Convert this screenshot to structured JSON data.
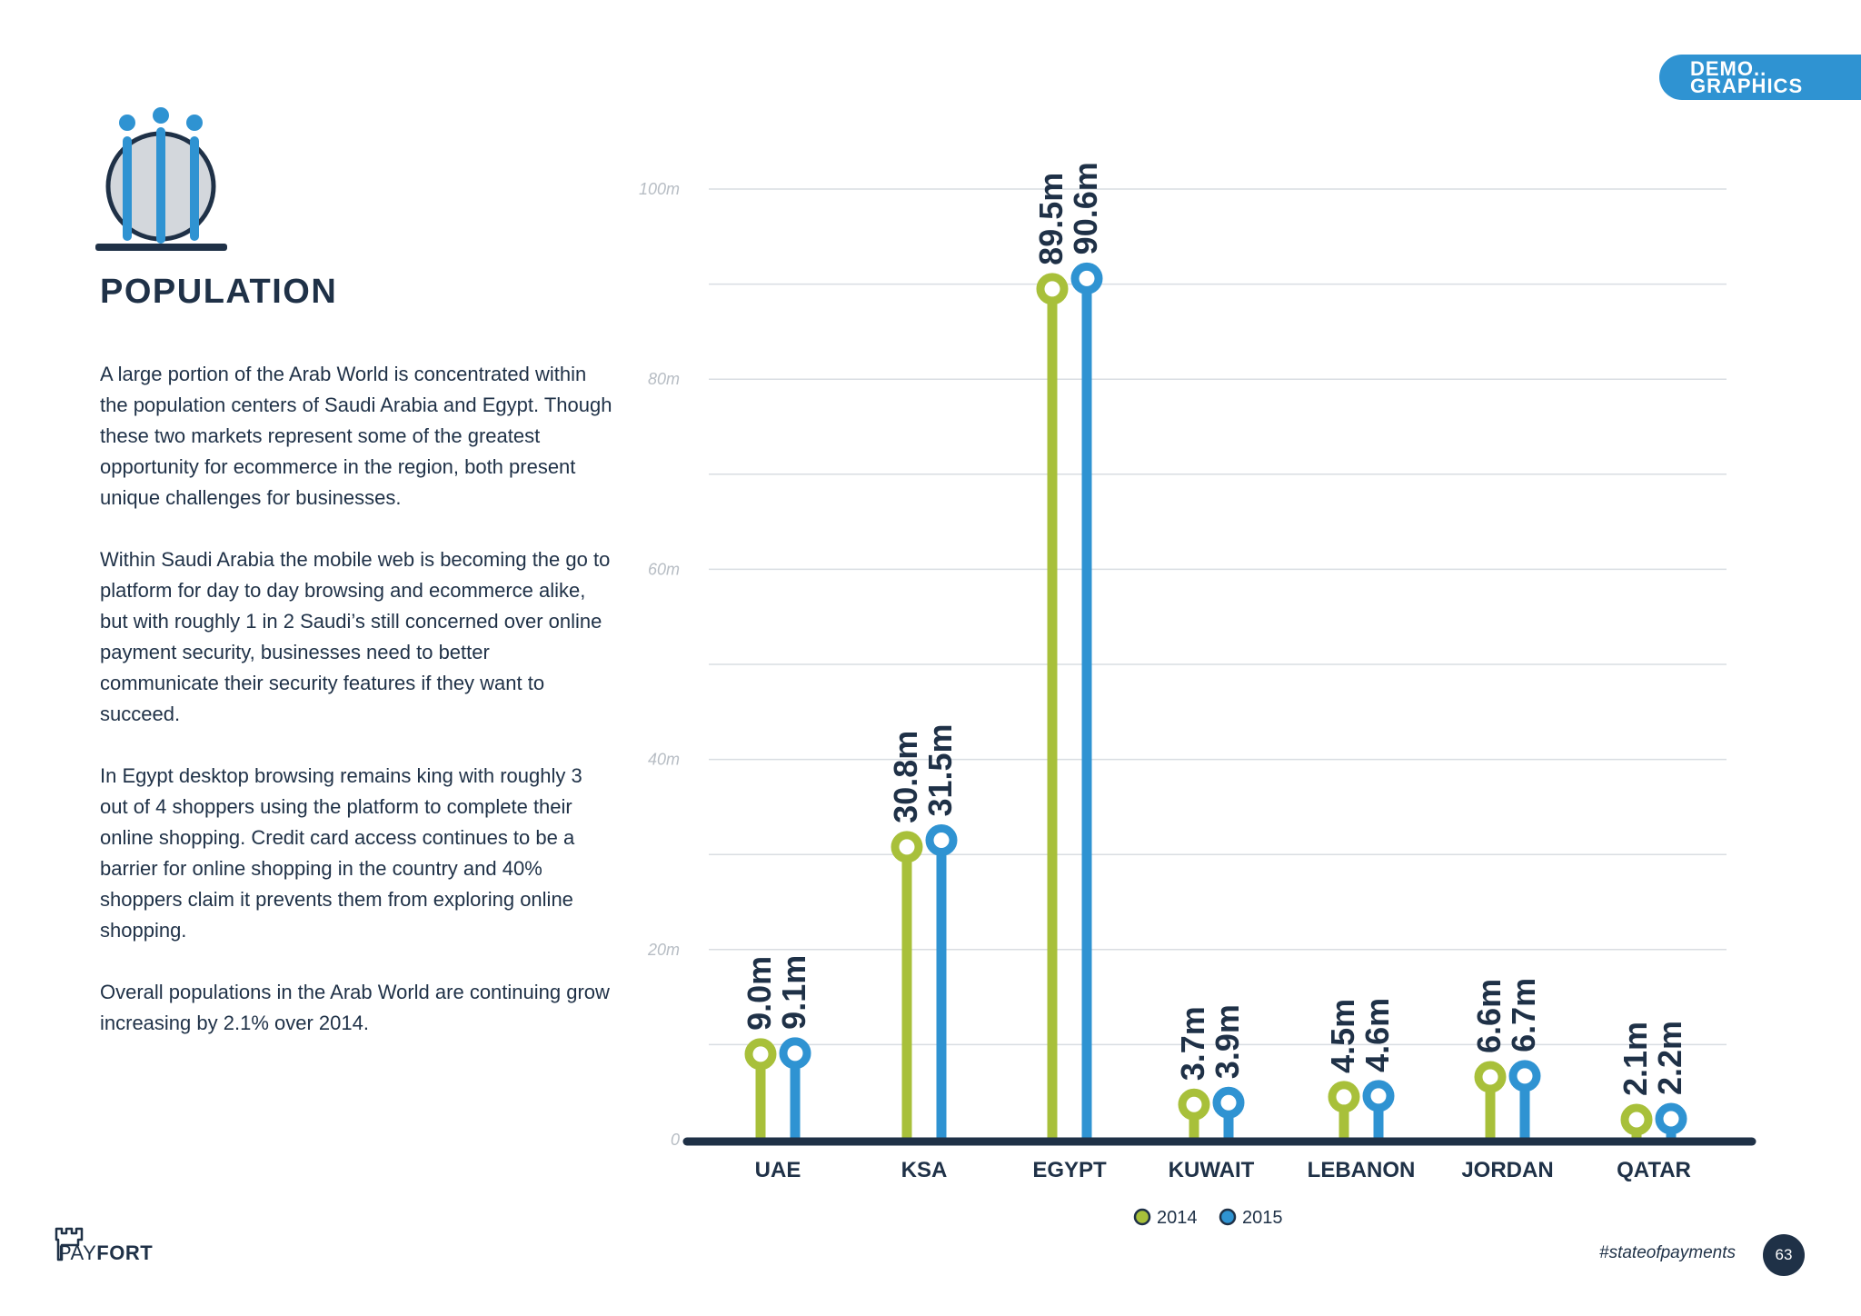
{
  "section_tag": {
    "line1": "DEMO..",
    "line2": "GRAPHICS"
  },
  "page_title": "POPULATION",
  "paragraphs": [
    "A large portion of the Arab World is concentrated within the population centers of Saudi Arabia and Egypt. Though these two markets represent some of the greatest opportunity for ecommerce in the region, both present unique challenges for businesses.",
    "Within Saudi Arabia the mobile web is becoming the go to platform for day to day browsing and ecommerce alike, but with roughly 1 in 2 Saudi’s still concerned over online payment security, businesses need to better communicate their security features if they want to succeed.",
    "In Egypt desktop browsing remains king with roughly 3 out of 4 shoppers using the platform to complete their online shopping. Credit card access continues to be a barrier for online shopping in the country and 40% shoppers claim it prevents them from exploring online shopping.",
    "Overall populations in the Arab World are continuing grow increasing by 2.1% over 2014."
  ],
  "chart_data": {
    "type": "bar",
    "title": "",
    "categories": [
      "UAE",
      "KSA",
      "EGYPT",
      "KUWAIT",
      "LEBANON",
      "JORDAN",
      "QATAR"
    ],
    "series": [
      {
        "name": "2014",
        "color": "#a8c03a",
        "values": [
          9.0,
          30.8,
          89.5,
          3.7,
          4.5,
          6.6,
          2.1
        ],
        "labels": [
          "9.0m",
          "30.8m",
          "89.5m",
          "3.7m",
          "4.5m",
          "6.6m",
          "2.1m"
        ]
      },
      {
        "name": "2015",
        "color": "#2f93d2",
        "values": [
          9.1,
          31.5,
          90.6,
          3.9,
          4.6,
          6.7,
          2.2
        ],
        "labels": [
          "9.1m",
          "31.5m",
          "90.6m",
          "3.9m",
          "4.6m",
          "6.7m",
          "2.2m"
        ]
      }
    ],
    "yticks": [
      0,
      20,
      40,
      60,
      80,
      100
    ],
    "ytick_labels": [
      "0",
      "20m",
      "40m",
      "60m",
      "80m",
      "100m"
    ],
    "ylim": [
      0,
      100
    ],
    "xlabel": "",
    "ylabel": "",
    "grid": true,
    "legend": "bottom-center"
  },
  "footer": {
    "logo_text_thin": "PAY",
    "logo_text_bold": "FORT",
    "hashtag": "#stateofpayments",
    "page_number": "63"
  }
}
